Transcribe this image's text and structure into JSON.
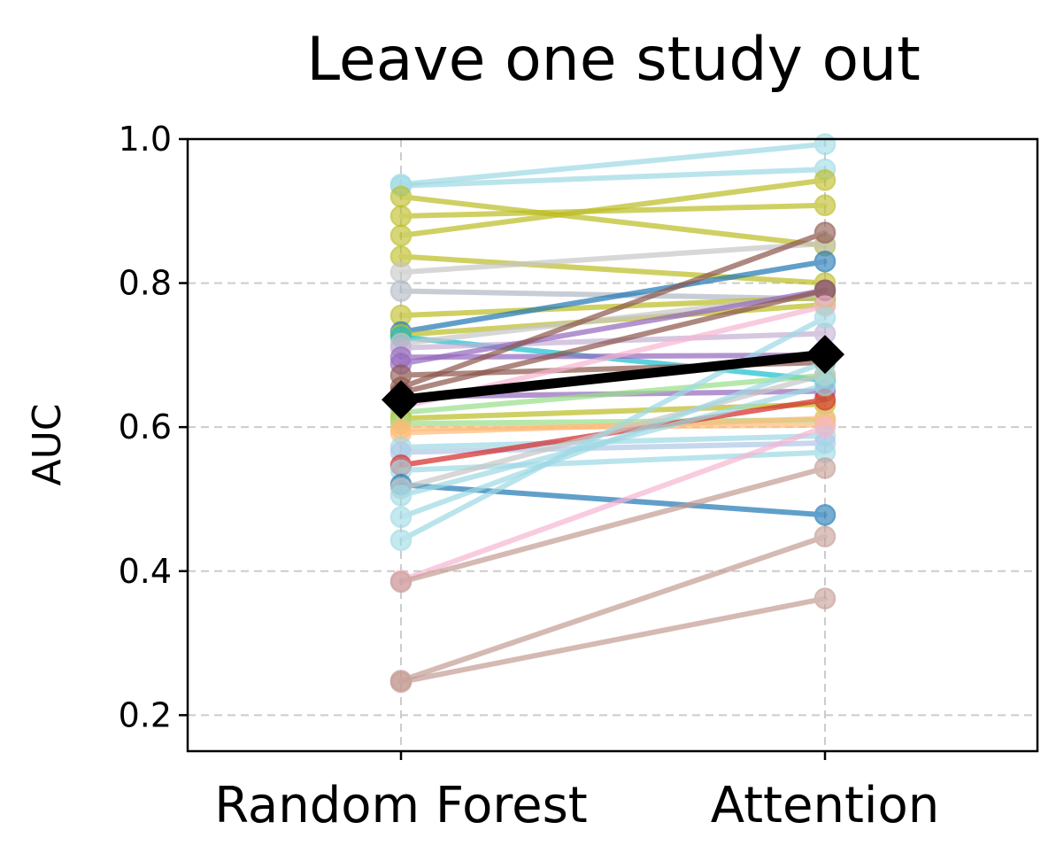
{
  "chart_data": {
    "type": "line",
    "title": "Leave one study out",
    "xlabel": "",
    "ylabel": "AUC",
    "categories": [
      "Random Forest",
      "Attention"
    ],
    "ylim": [
      0.15,
      1.0
    ],
    "yticks": [
      "0.2",
      "0.4",
      "0.6",
      "0.8",
      "1.0"
    ],
    "grid": true,
    "mean": {
      "values": [
        0.638,
        0.701
      ],
      "color": "#000000"
    },
    "series": [
      {
        "values": [
          0.937,
          0.993
        ],
        "color": "#9edae5"
      },
      {
        "values": [
          0.935,
          0.958
        ],
        "color": "#9edae5"
      },
      {
        "values": [
          0.92,
          0.852
        ],
        "color": "#bcbd22"
      },
      {
        "values": [
          0.893,
          0.908
        ],
        "color": "#bcbd22"
      },
      {
        "values": [
          0.866,
          0.943
        ],
        "color": "#bcbd22"
      },
      {
        "values": [
          0.837,
          0.8
        ],
        "color": "#bcbd22"
      },
      {
        "values": [
          0.815,
          0.855
        ],
        "color": "#c7c7c7"
      },
      {
        "values": [
          0.789,
          0.778
        ],
        "color": "#b0b8c4"
      },
      {
        "values": [
          0.755,
          0.78
        ],
        "color": "#bcbd22"
      },
      {
        "values": [
          0.732,
          0.83
        ],
        "color": "#1f77b4"
      },
      {
        "values": [
          0.728,
          0.77
        ],
        "color": "#bcbd22"
      },
      {
        "values": [
          0.725,
          0.665
        ],
        "color": "#17becf"
      },
      {
        "values": [
          0.716,
          0.785
        ],
        "color": "#c7c7c7"
      },
      {
        "values": [
          0.71,
          0.73
        ],
        "color": "#c5b0d5"
      },
      {
        "values": [
          0.697,
          0.7
        ],
        "color": "#9467bd"
      },
      {
        "values": [
          0.688,
          0.79
        ],
        "color": "#9467bd"
      },
      {
        "values": [
          0.672,
          0.69
        ],
        "color": "#8c564b"
      },
      {
        "values": [
          0.655,
          0.87
        ],
        "color": "#8c564b"
      },
      {
        "values": [
          0.648,
          0.79
        ],
        "color": "#8c564b"
      },
      {
        "values": [
          0.642,
          0.65
        ],
        "color": "#9467bd"
      },
      {
        "values": [
          0.628,
          0.768
        ],
        "color": "#f7b6d2"
      },
      {
        "values": [
          0.62,
          0.672
        ],
        "color": "#98df8a"
      },
      {
        "values": [
          0.612,
          0.632
        ],
        "color": "#bcbd22"
      },
      {
        "values": [
          0.605,
          0.61
        ],
        "color": "#98df8a"
      },
      {
        "values": [
          0.598,
          0.603
        ],
        "color": "#ffbb78"
      },
      {
        "values": [
          0.592,
          0.612
        ],
        "color": "#ffbb78"
      },
      {
        "values": [
          0.572,
          0.588
        ],
        "color": "#9edae5"
      },
      {
        "values": [
          0.565,
          0.578
        ],
        "color": "#aec7e8"
      },
      {
        "values": [
          0.547,
          0.638
        ],
        "color": "#d62728"
      },
      {
        "values": [
          0.54,
          0.565
        ],
        "color": "#9edae5"
      },
      {
        "values": [
          0.52,
          0.478
        ],
        "color": "#1f77b4"
      },
      {
        "values": [
          0.515,
          0.673
        ],
        "color": "#c7c7c7"
      },
      {
        "values": [
          0.505,
          0.658
        ],
        "color": "#9edae5"
      },
      {
        "values": [
          0.475,
          0.69
        ],
        "color": "#9edae5"
      },
      {
        "values": [
          0.443,
          0.752
        ],
        "color": "#9edae5"
      },
      {
        "values": [
          0.387,
          0.6
        ],
        "color": "#f7b6d2"
      },
      {
        "values": [
          0.385,
          0.543
        ],
        "color": "#c49c94"
      },
      {
        "values": [
          0.248,
          0.448
        ],
        "color": "#c49c94"
      },
      {
        "values": [
          0.246,
          0.362
        ],
        "color": "#c49c94"
      }
    ]
  }
}
